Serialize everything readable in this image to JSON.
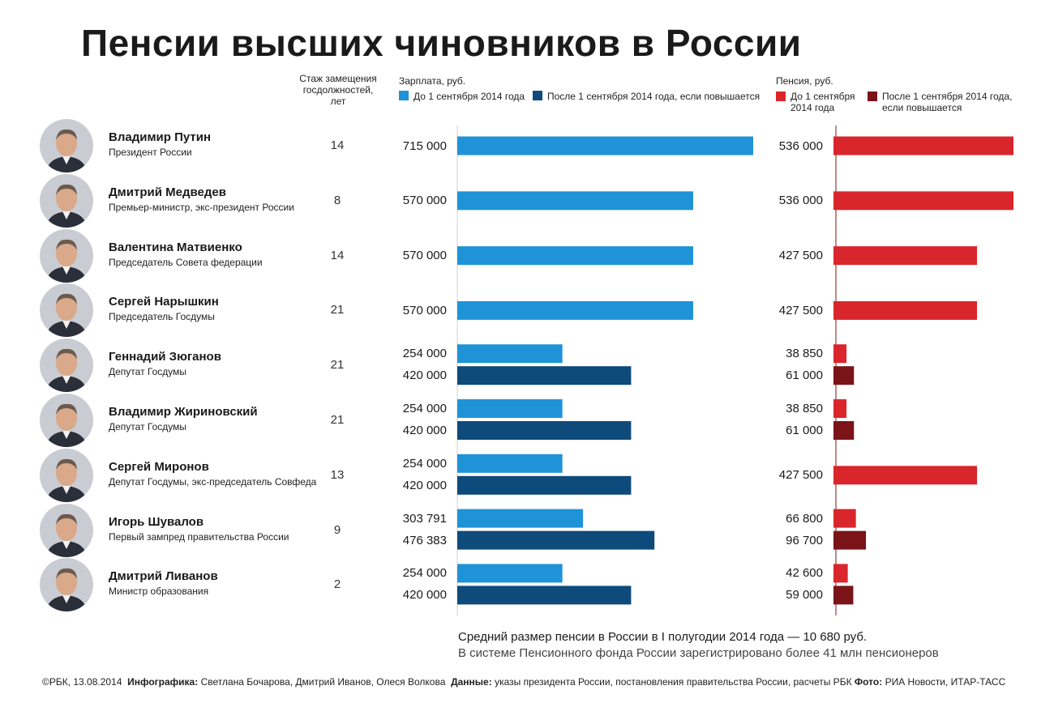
{
  "title": "Пенсии высших чиновников в России",
  "headers": {
    "years_label": "Стаж замещения госдолжностей, лет",
    "salary_label": "Зарплата, руб.",
    "pension_label": "Пенсия, руб."
  },
  "legend": {
    "salary_before": "До 1 сентября 2014 года",
    "salary_after": "После 1 сентября 2014 года, если повышается",
    "pension_before": "До 1 сентября 2014 года",
    "pension_after": "После 1 сентября 2014 года, если повышается"
  },
  "colors": {
    "salary_before": "#1e93d8",
    "salary_after": "#0e4a7a",
    "pension_before": "#d9262c",
    "pension_after": "#7a1419"
  },
  "chart_data": {
    "type": "bar",
    "orientation": "horizontal",
    "title": "Пенсии высших чиновников в России",
    "categories": [
      "Владимир Путин",
      "Дмитрий Медведев",
      "Валентина Матвиенко",
      "Сергей Нарышкин",
      "Геннадий Зюганов",
      "Владимир Жириновский",
      "Сергей Миронов",
      "Игорь Шувалов",
      "Дмитрий Ливанов"
    ],
    "rows": [
      {
        "name": "Владимир Путин",
        "role": "Президент России",
        "years": "14",
        "icon": "avatar-putin-icon",
        "salary_before": 715000,
        "salary_before_label": "715 000",
        "salary_after": null,
        "salary_after_label": "",
        "pension_before": 536000,
        "pension_before_label": "536 000",
        "pension_after": null,
        "pension_after_label": ""
      },
      {
        "name": "Дмитрий Медведев",
        "role": "Премьер-министр, экс-президент России",
        "years": "8",
        "icon": "avatar-medvedev-icon",
        "salary_before": 570000,
        "salary_before_label": "570 000",
        "salary_after": null,
        "salary_after_label": "",
        "pension_before": 536000,
        "pension_before_label": "536 000",
        "pension_after": null,
        "pension_after_label": ""
      },
      {
        "name": "Валентина Матвиенко",
        "role": "Председатель Совета федерации",
        "years": "14",
        "icon": "avatar-matvienko-icon",
        "salary_before": 570000,
        "salary_before_label": "570 000",
        "salary_after": null,
        "salary_after_label": "",
        "pension_before": 427500,
        "pension_before_label": "427 500",
        "pension_after": null,
        "pension_after_label": ""
      },
      {
        "name": "Сергей Нарышкин",
        "role": "Председатель Госдумы",
        "years": "21",
        "icon": "avatar-naryshkin-icon",
        "salary_before": 570000,
        "salary_before_label": "570 000",
        "salary_after": null,
        "salary_after_label": "",
        "pension_before": 427500,
        "pension_before_label": "427 500",
        "pension_after": null,
        "pension_after_label": ""
      },
      {
        "name": "Геннадий Зюганов",
        "role": "Депутат Госдумы",
        "years": "21",
        "icon": "avatar-zyuganov-icon",
        "salary_before": 254000,
        "salary_before_label": "254 000",
        "salary_after": 420000,
        "salary_after_label": "420 000",
        "pension_before": 38850,
        "pension_before_label": "38 850",
        "pension_after": 61000,
        "pension_after_label": "61 000"
      },
      {
        "name": "Владимир Жириновский",
        "role": "Депутат Госдумы",
        "years": "21",
        "icon": "avatar-zhirinovsky-icon",
        "salary_before": 254000,
        "salary_before_label": "254 000",
        "salary_after": 420000,
        "salary_after_label": "420 000",
        "pension_before": 38850,
        "pension_before_label": "38 850",
        "pension_after": 61000,
        "pension_after_label": "61 000"
      },
      {
        "name": "Сергей Миронов",
        "role": "Депутат Госдумы, экс-председатель Совфеда",
        "years": "13",
        "icon": "avatar-mironov-icon",
        "salary_before": 254000,
        "salary_before_label": "254 000",
        "salary_after": 420000,
        "salary_after_label": "420 000",
        "pension_before": 427500,
        "pension_before_label": "427 500",
        "pension_after": null,
        "pension_after_label": ""
      },
      {
        "name": "Игорь Шувалов",
        "role": "Первый зампред правительства России",
        "years": "9",
        "icon": "avatar-shuvalov-icon",
        "salary_before": 303791,
        "salary_before_label": "303 791",
        "salary_after": 476383,
        "salary_after_label": "476 383",
        "pension_before": 66800,
        "pension_before_label": "66 800",
        "pension_after": 96700,
        "pension_after_label": "96 700"
      },
      {
        "name": "Дмитрий Ливанов",
        "role": "Министр образования",
        "years": "2",
        "icon": "avatar-livanov-icon",
        "salary_before": 254000,
        "salary_before_label": "254 000",
        "salary_after": 420000,
        "salary_after_label": "420 000",
        "pension_before": 42600,
        "pension_before_label": "42 600",
        "pension_after": 59000,
        "pension_after_label": "59 000"
      }
    ]
  },
  "notes": {
    "line1": "Средний размер пенсии в России в I полугодии 2014 года — 10 680 руб.",
    "line2": "В системе Пенсионного фонда России зарегистрировано более 41 млн пенсионеров"
  },
  "footer": {
    "credit": "©РБК, 13.08.2014",
    "infographics_label": "Инфографика:",
    "infographics_value": "Светлана Бочарова, Дмитрий Иванов, Олеся Волкова",
    "data_label": "Данные:",
    "data_value": "указы президента России, постановления правительства России, расчеты РБК",
    "photo_label": "Фото:",
    "photo_value": "РИА Новости, ИТАР-ТАСС"
  }
}
